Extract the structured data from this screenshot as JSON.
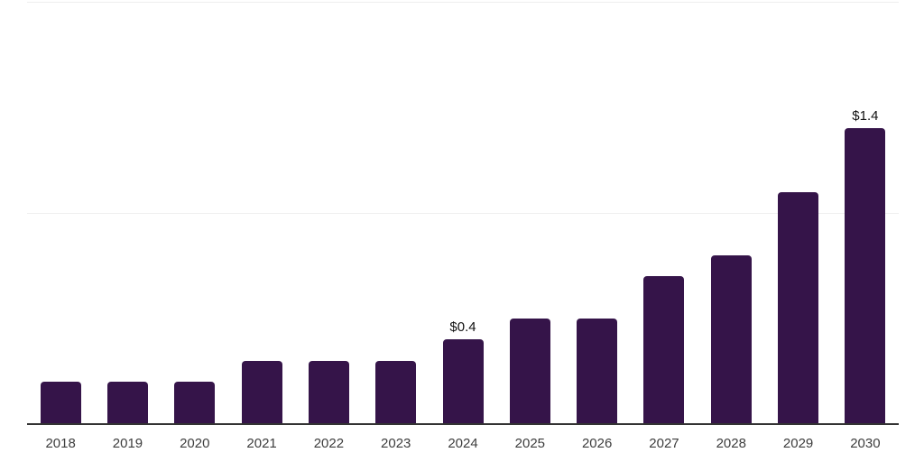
{
  "page": {
    "background": "#ffffff"
  },
  "chart_data": {
    "type": "bar",
    "title": "",
    "xlabel": "",
    "ylabel": "",
    "categories": [
      "2018",
      "2019",
      "2020",
      "2021",
      "2022",
      "2023",
      "2024",
      "2025",
      "2026",
      "2027",
      "2028",
      "2029",
      "2030"
    ],
    "values": [
      0.2,
      0.2,
      0.2,
      0.3,
      0.3,
      0.3,
      0.4,
      0.5,
      0.5,
      0.7,
      0.8,
      1.1,
      1.4
    ],
    "bar_labels": [
      "",
      "",
      "",
      "",
      "",
      "",
      "$0.4",
      "",
      "",
      "",
      "",
      "",
      "$1.4"
    ],
    "ylim": [
      0,
      2.0
    ],
    "gridline_values": [
      1.0,
      2.0
    ],
    "grid": "horizontal-only",
    "legend": "none",
    "colors": {
      "bar": "#351449",
      "grid_line": "#efefef",
      "axis_line": "#333333",
      "tick_label": "#3d3d3d",
      "data_label": "#111111"
    }
  }
}
